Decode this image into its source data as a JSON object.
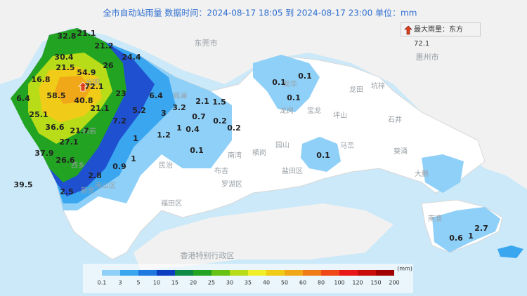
{
  "title": "全市自动站雨量  数据时间：2024-08-17 18:05 到 2024-08-17 23:00  单位：mm",
  "max_rain": {
    "label": "最大雨量：",
    "station": "东方",
    "value": 72.1
  },
  "stations": [
    32.8,
    21.1,
    21.2,
    30.4,
    24.4,
    21.5,
    54.9,
    26,
    16.8,
    72.1,
    58.5,
    6.4,
    40.8,
    23,
    6.4,
    25.1,
    21.1,
    5.2,
    3,
    3.2,
    2.1,
    1.5,
    0.7,
    0.2,
    36.6,
    21.7,
    7.2,
    0.4,
    0.2,
    1,
    1.2,
    1,
    27.1,
    37.9,
    26.6,
    1,
    0.1,
    2.8,
    0.9,
    39.5,
    2.5,
    0.1,
    0.1,
    0.1,
    0.1,
    0.6,
    1,
    2.7
  ],
  "places": [
    "东莞市",
    "惠州市",
    "香港特别行政区",
    "光明",
    "龙华",
    "龙岗",
    "坪山",
    "坑梓",
    "龙田",
    "宝龙",
    "石井",
    "葵涌",
    "马峦",
    "大鹏",
    "南澳",
    "园山",
    "横岗",
    "南湾",
    "布吉",
    "盐田区",
    "罗湖区",
    "福田区",
    "南山区",
    "西乡",
    "新安",
    "石岩",
    "民治",
    "观澜"
  ],
  "legend": {
    "unit": "(mm)",
    "ticks": [
      0.1,
      3,
      5,
      10,
      15,
      20,
      25,
      30,
      35,
      40,
      50,
      60,
      80,
      100,
      120,
      150,
      200
    ],
    "colors": [
      "#8fd0f8",
      "#3aa6f0",
      "#1e78e0",
      "#0c3cc0",
      "#0c8a46",
      "#22a422",
      "#66c214",
      "#b8dc18",
      "#f0ee28",
      "#f0cc18",
      "#f0a818",
      "#f07c18",
      "#f04818",
      "#e81818",
      "#c80c0c",
      "#a00000"
    ]
  }
}
